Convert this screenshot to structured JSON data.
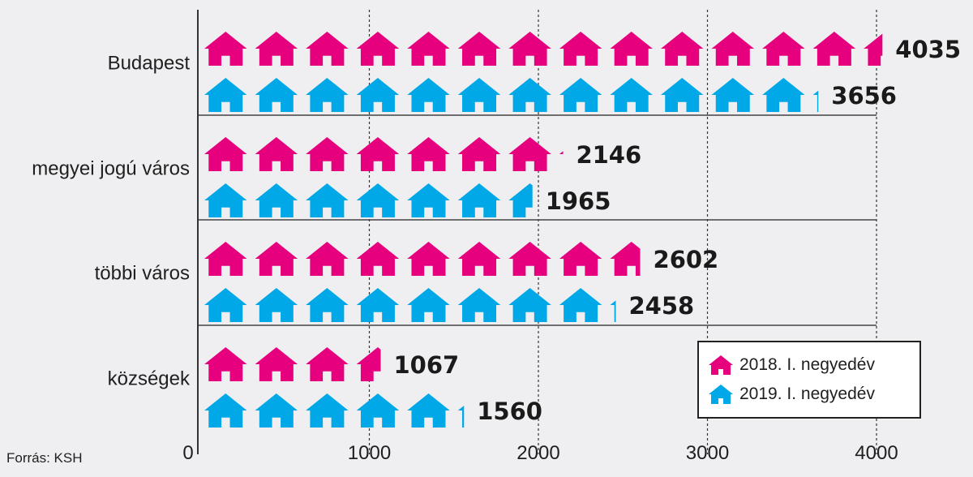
{
  "chart_data": {
    "type": "bar",
    "orientation": "horizontal",
    "categories": [
      "Budapest",
      "megyei jogú város",
      "többi város",
      "községek"
    ],
    "series": [
      {
        "name": "2018. I. negyedév",
        "color": "#e6007e",
        "values": [
          4035,
          2146,
          2602,
          1067
        ]
      },
      {
        "name": "2019. I. negyedév",
        "color": "#00a8e8",
        "values": [
          3656,
          1965,
          2458,
          1560
        ]
      }
    ],
    "xlim": [
      0,
      4000
    ],
    "xticks": [
      {
        "value": 0,
        "label": "0"
      },
      {
        "value": 1000,
        "label": "1000"
      },
      {
        "value": 2000,
        "label": "2000"
      },
      {
        "value": 3000,
        "label": "3000"
      },
      {
        "value": 4000,
        "label": "4000"
      }
    ],
    "marker": "house-icon",
    "units_per_icon": 300,
    "grid": true,
    "legend_position": "bottom-right"
  },
  "source": "Forrás: KSH"
}
